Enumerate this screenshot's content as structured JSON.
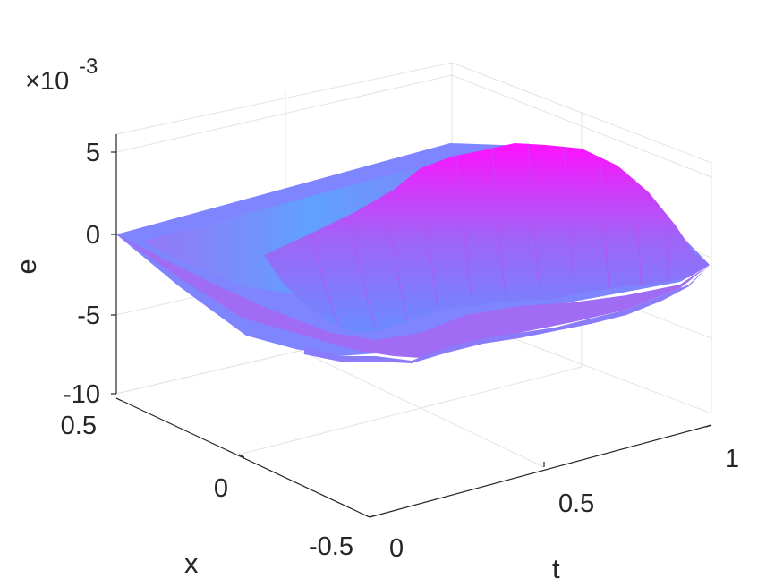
{
  "chart_data": {
    "type": "surface",
    "zlabel": "e",
    "xlabel": "x",
    "tlabel": "t",
    "exponent_label": "×10",
    "exponent_power": "-3",
    "x_range": [
      -0.5,
      0.5
    ],
    "t_range": [
      0,
      1
    ],
    "e_range": [
      -10,
      5
    ],
    "e_ticks": [
      "5",
      "0",
      "-5",
      "-10"
    ],
    "e_tick_values": [
      5,
      0,
      -5,
      -10
    ],
    "x_ticks": [
      "0.5",
      "0",
      "-0.5"
    ],
    "x_tick_values": [
      0.5,
      0,
      -0.5
    ],
    "t_ticks": [
      "0",
      "0.5",
      "1"
    ],
    "t_tick_values": [
      0,
      0.5,
      1
    ],
    "surface_description_values": {
      "edges_value": 0,
      "max_e_approx": 5,
      "min_e_approx": -5
    },
    "grid": true,
    "colormap": [
      "#5aa6ff",
      "#8f79ff",
      "#ff00ff"
    ]
  }
}
